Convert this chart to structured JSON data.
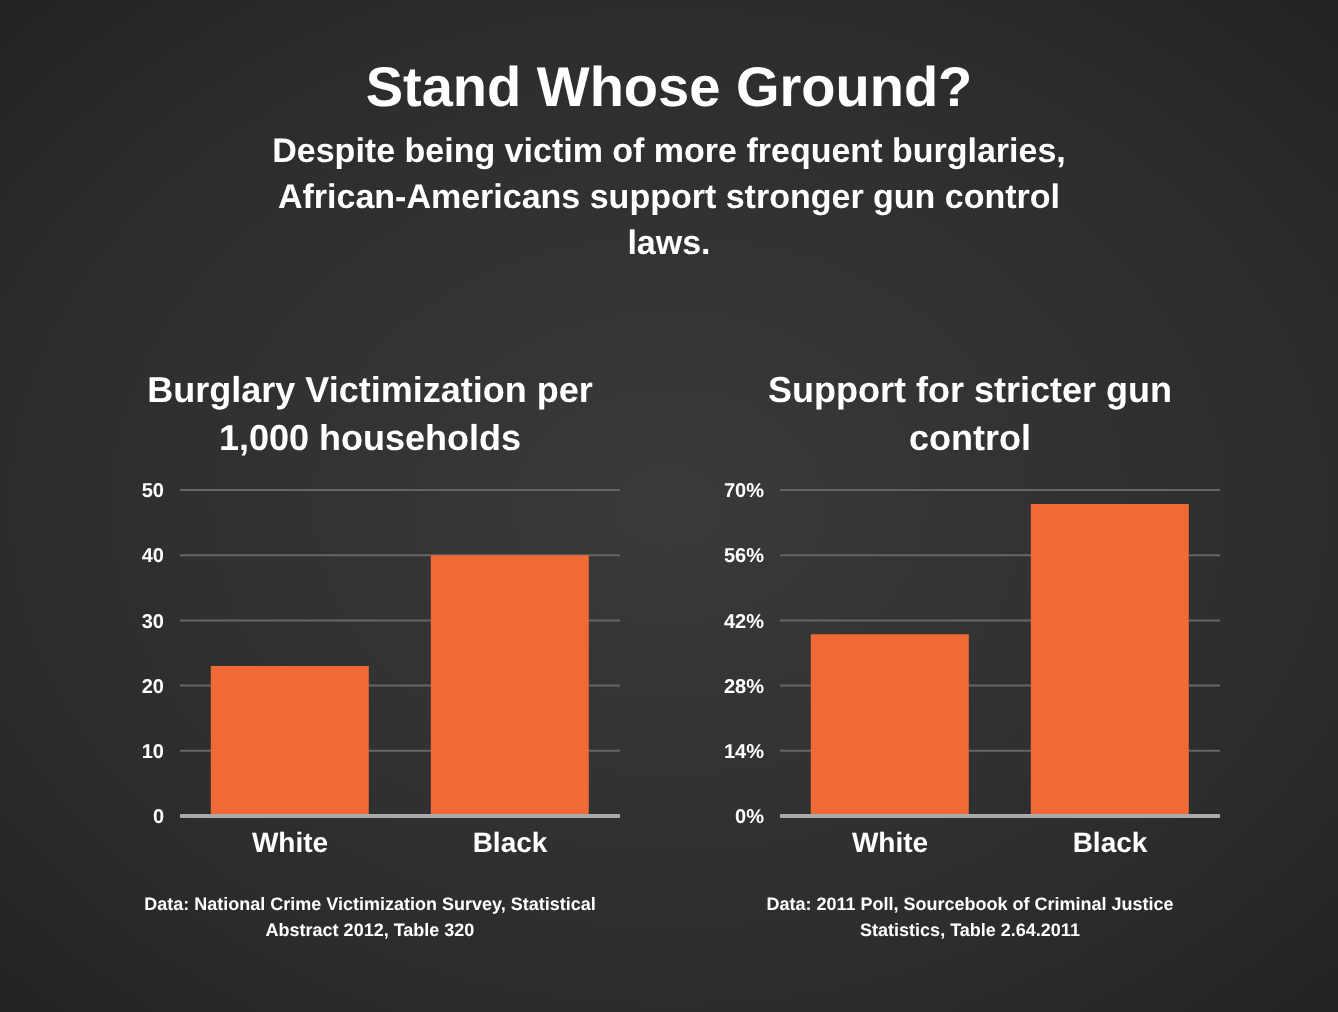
{
  "chart_data": [
    {
      "type": "other",
      "title": "Stand Whose Ground?",
      "subtitle": "Despite being victim of more frequent burglaries, African-Americans support stronger gun control laws."
    },
    {
      "type": "bar",
      "title": "Burglary Victimization per 1,000 households",
      "categories": [
        "White",
        "Black"
      ],
      "values": [
        23,
        40
      ],
      "color": "#f06a35",
      "ylim": [
        0,
        50
      ],
      "yticks": [
        0,
        10,
        20,
        30,
        40,
        50
      ],
      "grid": "y",
      "annotations": [
        "Data: National Crime Victimization Survey, Statistical Abstract 2012, Table 320"
      ]
    },
    {
      "type": "bar",
      "title": "Support for stricter gun control",
      "categories": [
        "White",
        "Black"
      ],
      "values": [
        39,
        67
      ],
      "color": "#f06a35",
      "ylim": [
        0,
        70
      ],
      "yticks": [
        {
          "value": 0,
          "label": "0%"
        },
        {
          "value": 14,
          "label": "14%"
        },
        {
          "value": 28,
          "label": "28%"
        },
        {
          "value": 42,
          "label": "42%"
        },
        {
          "value": 56,
          "label": "56%"
        },
        {
          "value": 70,
          "label": "70%"
        }
      ],
      "grid": "y",
      "annotations": [
        "Data: 2011 Poll, Sourcebook of Criminal Justice Statistics, Table 2.64.2011"
      ]
    }
  ]
}
